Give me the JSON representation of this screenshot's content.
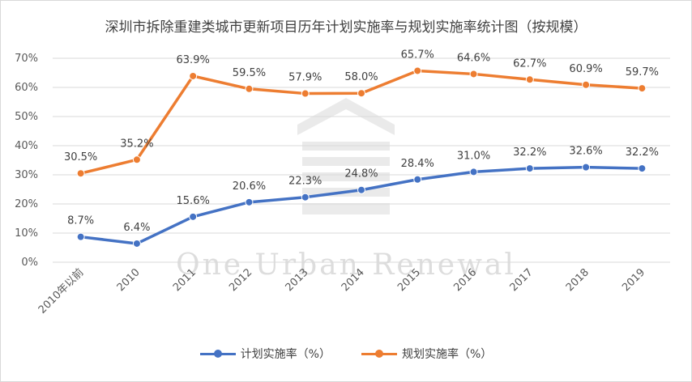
{
  "chart_data": {
    "type": "line",
    "title": "深圳市拆除重建类城市更新项目历年计划实施率与规划实施率统计图（按规模）",
    "categories": [
      "2010年以前",
      "2010",
      "2011",
      "2012",
      "2013",
      "2014",
      "2015",
      "2016",
      "2017",
      "2018",
      "2019"
    ],
    "series": [
      {
        "name": "计划实施率（%）",
        "color": "#4472c4",
        "values": [
          8.7,
          6.4,
          15.6,
          20.6,
          22.3,
          24.8,
          28.4,
          31.0,
          32.2,
          32.6,
          32.2
        ],
        "labels": [
          "8.7%",
          "6.4%",
          "15.6%",
          "20.6%",
          "22.3%",
          "24.8%",
          "28.4%",
          "31.0%",
          "32.2%",
          "32.6%",
          "32.2%"
        ]
      },
      {
        "name": "规划实施率（%）",
        "color": "#ed7d31",
        "values": [
          30.5,
          35.2,
          63.9,
          59.5,
          57.9,
          58.0,
          65.7,
          64.6,
          62.7,
          60.9,
          59.7
        ],
        "labels": [
          "30.5%",
          "35.2%",
          "63.9%",
          "59.5%",
          "57.9%",
          "58.0%",
          "65.7%",
          "64.6%",
          "62.7%",
          "60.9%",
          "59.7%"
        ]
      }
    ],
    "yticks": [
      "0%",
      "10%",
      "20%",
      "30%",
      "40%",
      "50%",
      "60%",
      "70%"
    ],
    "ylim": [
      0,
      70
    ],
    "grid": true,
    "legend_position": "bottom",
    "watermark": "One Urban Renewal"
  }
}
